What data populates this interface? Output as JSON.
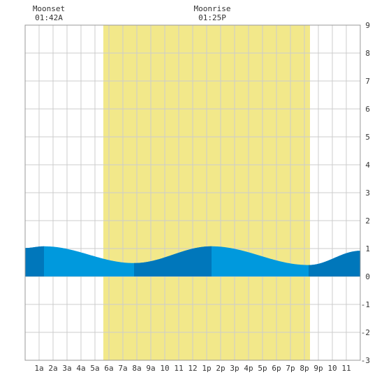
{
  "chart_data": {
    "type": "area",
    "title": "",
    "xlabel": "",
    "ylabel": "",
    "xlim": [
      0,
      24
    ],
    "ylim": [
      -3,
      9
    ],
    "grid": true,
    "x_ticks": [
      {
        "x": 1,
        "label": "1a"
      },
      {
        "x": 2,
        "label": "2a"
      },
      {
        "x": 3,
        "label": "3a"
      },
      {
        "x": 4,
        "label": "4a"
      },
      {
        "x": 5,
        "label": "5a"
      },
      {
        "x": 6,
        "label": "6a"
      },
      {
        "x": 7,
        "label": "7a"
      },
      {
        "x": 8,
        "label": "8a"
      },
      {
        "x": 9,
        "label": "9a"
      },
      {
        "x": 10,
        "label": "10"
      },
      {
        "x": 11,
        "label": "11"
      },
      {
        "x": 12,
        "label": "12"
      },
      {
        "x": 13,
        "label": "1p"
      },
      {
        "x": 14,
        "label": "2p"
      },
      {
        "x": 15,
        "label": "3p"
      },
      {
        "x": 16,
        "label": "4p"
      },
      {
        "x": 17,
        "label": "5p"
      },
      {
        "x": 18,
        "label": "6p"
      },
      {
        "x": 19,
        "label": "7p"
      },
      {
        "x": 20,
        "label": "8p"
      },
      {
        "x": 21,
        "label": "9p"
      },
      {
        "x": 22,
        "label": "10"
      },
      {
        "x": 23,
        "label": "11"
      }
    ],
    "y_ticks": [
      -3,
      -2,
      -1,
      0,
      1,
      2,
      3,
      4,
      5,
      6,
      7,
      8,
      9
    ],
    "daylight": {
      "start": 5.6,
      "end": 20.4
    },
    "tide_curve": {
      "x": [
        0,
        1.35,
        7.8,
        13.35,
        20.3,
        24
      ],
      "y": [
        1.02,
        1.08,
        0.48,
        1.08,
        0.41,
        0.92
      ]
    },
    "tide_bands": [
      {
        "start": 0,
        "end": 1.35
      },
      {
        "start": 7.8,
        "end": 13.35
      },
      {
        "start": 20.3,
        "end": 24
      }
    ],
    "colors": {
      "daylight": "#f2e88a",
      "water_light": "#0099dd",
      "water_dark": "#0077bb",
      "grid": "#cccccc",
      "border": "#999999"
    },
    "annotations": [
      {
        "x": 1.7,
        "label": "Moonset",
        "time": "01:42A"
      },
      {
        "x": 13.4,
        "label": "Moonrise",
        "time": "01:25P"
      }
    ]
  }
}
